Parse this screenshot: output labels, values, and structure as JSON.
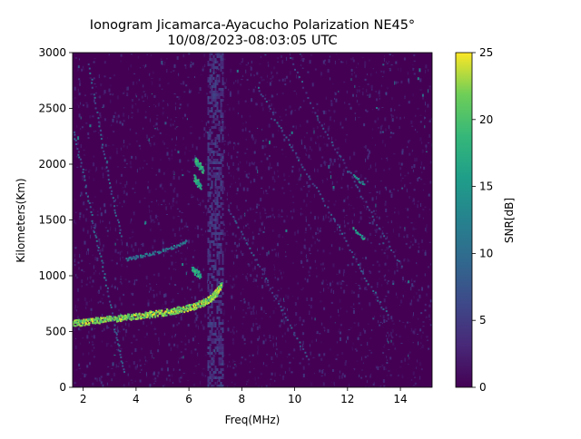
{
  "chart_data": {
    "type": "heatmap",
    "title": "Ionogram Jicamarca-Ayacucho Polarization NE45°",
    "subtitle": "10/08/2023-08:03:05 UTC",
    "xlabel": "Freq(MHz)",
    "ylabel": "Kilometers(Km)",
    "xlim": [
      1.6,
      15.2
    ],
    "ylim": [
      0,
      3000
    ],
    "x_ticks": [
      2,
      4,
      6,
      8,
      10,
      12,
      14
    ],
    "y_ticks": [
      0,
      500,
      1000,
      1500,
      2000,
      2500,
      3000
    ],
    "colorbar": {
      "label": "SNR[dB]",
      "range": [
        0,
        25
      ],
      "ticks": [
        0,
        5,
        10,
        15,
        20,
        25
      ],
      "colormap": "viridis"
    },
    "traces": [
      {
        "kind": "ordinary echo (strong)",
        "snr_db": 25,
        "points": [
          [
            1.6,
            580
          ],
          [
            2.0,
            590
          ],
          [
            2.5,
            605
          ],
          [
            3.0,
            620
          ],
          [
            3.5,
            630
          ],
          [
            4.0,
            645
          ],
          [
            4.5,
            660
          ],
          [
            5.0,
            675
          ],
          [
            5.5,
            695
          ],
          [
            6.0,
            720
          ],
          [
            6.5,
            760
          ],
          [
            6.8,
            800
          ],
          [
            7.0,
            850
          ],
          [
            7.2,
            920
          ]
        ]
      },
      {
        "kind": "multihop echo",
        "snr_db": 14,
        "points": [
          [
            3.6,
            1150
          ],
          [
            4.0,
            1175
          ],
          [
            4.5,
            1200
          ],
          [
            5.0,
            1230
          ],
          [
            5.5,
            1270
          ],
          [
            5.9,
            1320
          ]
        ]
      },
      {
        "kind": "oblique trace",
        "snr_db": 10,
        "points": [
          [
            8.6,
            2700
          ],
          [
            9.5,
            2300
          ],
          [
            10.5,
            1900
          ],
          [
            11.5,
            1500
          ],
          [
            12.5,
            1050
          ],
          [
            13.5,
            650
          ]
        ]
      },
      {
        "kind": "oblique trace",
        "snr_db": 10,
        "points": [
          [
            7.5,
            1600
          ],
          [
            8.5,
            1150
          ],
          [
            9.5,
            700
          ],
          [
            10.5,
            250
          ]
        ]
      },
      {
        "kind": "oblique trace",
        "snr_db": 9,
        "points": [
          [
            9.8,
            2950
          ],
          [
            11.0,
            2350
          ],
          [
            12.0,
            1950
          ],
          [
            13.0,
            1500
          ],
          [
            14.0,
            1100
          ]
        ]
      },
      {
        "kind": "steep left trace",
        "snr_db": 11,
        "points": [
          [
            1.6,
            2300
          ],
          [
            2.0,
            1900
          ],
          [
            2.4,
            1400
          ],
          [
            2.8,
            1000
          ],
          [
            3.2,
            500
          ],
          [
            3.5,
            150
          ]
        ]
      },
      {
        "kind": "steep left trace",
        "snr_db": 11,
        "points": [
          [
            2.2,
            2900
          ],
          [
            2.6,
            2300
          ],
          [
            3.0,
            1800
          ],
          [
            3.4,
            1350
          ]
        ]
      },
      {
        "kind": "short segment",
        "snr_db": 20,
        "points": [
          [
            6.2,
            2050
          ],
          [
            6.5,
            1950
          ]
        ]
      },
      {
        "kind": "short segment",
        "snr_db": 20,
        "points": [
          [
            6.2,
            1880
          ],
          [
            6.4,
            1800
          ]
        ]
      },
      {
        "kind": "short segment",
        "snr_db": 20,
        "points": [
          [
            6.1,
            1060
          ],
          [
            6.4,
            1010
          ]
        ]
      },
      {
        "kind": "short segment",
        "snr_db": 18,
        "points": [
          [
            12.2,
            1430
          ],
          [
            12.6,
            1340
          ]
        ]
      },
      {
        "kind": "short segment",
        "snr_db": 17,
        "points": [
          [
            12.2,
            1900
          ],
          [
            12.6,
            1830
          ]
        ]
      }
    ],
    "interference_band_mhz": [
      6.7,
      7.3
    ]
  }
}
